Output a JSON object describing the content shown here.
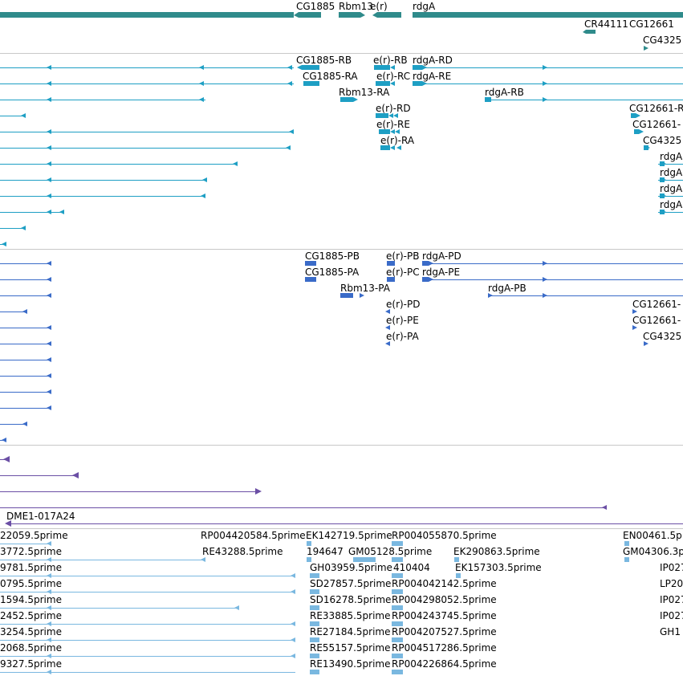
{
  "colors": {
    "gene": "#2f8b8b",
    "transcript": "#1e9fc4",
    "cds": "#3a6bc8",
    "clone": "#6b4fa5",
    "est": "#7ab8e0",
    "separator": "#c8c8c8"
  },
  "tracks": {
    "genes": {
      "labels": [
        "CG1885",
        "Rbm13",
        "e(r)",
        "rdgA",
        "CR44111",
        "CG12661",
        "CG4325"
      ]
    },
    "transcripts": {
      "labels": [
        "CG1885-RB",
        "e(r)-RB",
        "rdgA-RD",
        "CG1885-RA",
        "e(r)-RC",
        "rdgA-RE",
        "Rbm13-RA",
        "rdgA-RB",
        "e(r)-RD",
        "CG12661-R",
        "e(r)-RE",
        "CG12661-",
        "e(r)-RA",
        "CG4325",
        "rdgA",
        "rdgA",
        "rdgA",
        "rdgA"
      ]
    },
    "cds": {
      "labels": [
        "CG1885-PB",
        "e(r)-PB",
        "rdgA-PD",
        "CG1885-PA",
        "e(r)-PC",
        "rdgA-PE",
        "Rbm13-PA",
        "rdgA-PB",
        "e(r)-PD",
        "CG12661-",
        "e(r)-PE",
        "CG12661-",
        "e(r)-PA",
        "CG4325"
      ]
    },
    "clones": {
      "labels": [
        "DME1-017A24"
      ]
    },
    "ests": {
      "labels": [
        "22059.5prime",
        "RP004420584.5prime",
        "EK142719.5prime",
        "RP004055870.5prime",
        "EN00461.5p",
        "3772.5prime",
        "RE43288.5prime",
        "194647",
        "GM05128.5prime",
        "EK290863.5prime",
        "GM04306.3p",
        "9781.5prime",
        "GH03959.5prime",
        "410404",
        "EK157303.5prime",
        "IP027",
        "0795.5prime",
        "SD27857.5prime",
        "RP004042142.5prime",
        "LP20",
        "1594.5prime",
        "SD16278.5prime",
        "RP004298052.5prime",
        "IP027",
        "2452.5prime",
        "RE33885.5prime",
        "RP004243745.5prime",
        "IP027",
        "3254.5prime",
        "RE27184.5prime",
        "RP004207527.5prime",
        "GH1",
        "2068.5prime",
        "RE55157.5prime",
        "RP004517286.5prime",
        "9327.5prime",
        "RE13490.5prime",
        "RP004226864.5prime"
      ]
    }
  }
}
